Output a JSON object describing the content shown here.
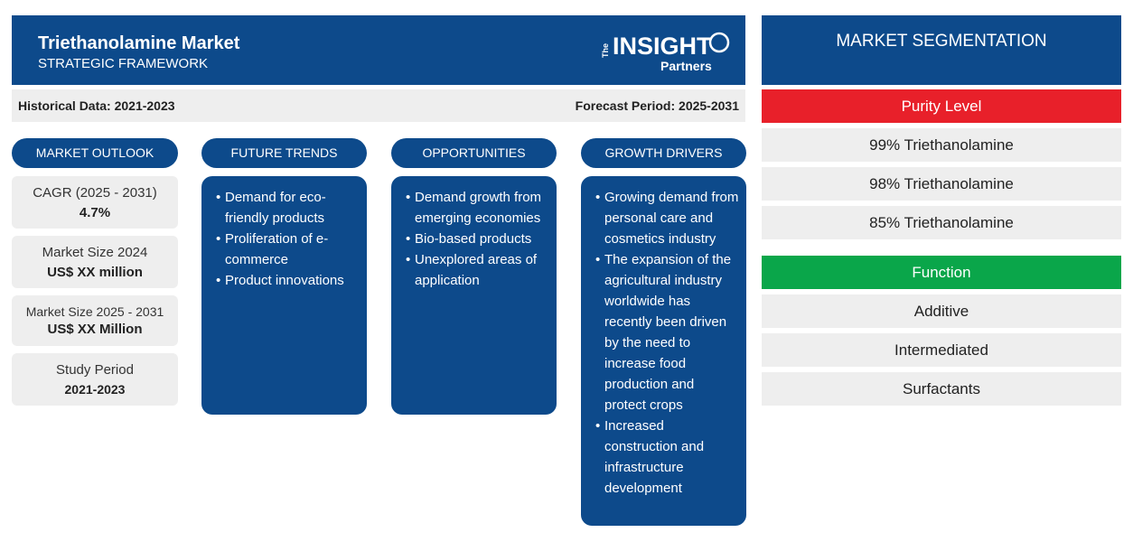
{
  "header": {
    "title": "Triethanolamine Market",
    "subtitle": "STRATEGIC FRAMEWORK"
  },
  "logo": {
    "the": "The",
    "insight": "INSIGHT",
    "partners": "Partners"
  },
  "subbar": {
    "historical": "Historical Data: 2021-2023",
    "forecast": "Forecast Period: 2025-2031"
  },
  "columns": {
    "market_outlook": "MARKET OUTLOOK",
    "future_trends": "FUTURE TRENDS",
    "opportunities": "OPPORTUNITIES",
    "growth_drivers": "GROWTH DRIVERS"
  },
  "outlook": [
    {
      "label": "CAGR (2025 - 2031)",
      "value": "4.7%"
    },
    {
      "label": "Market Size 2024",
      "value": "US$ XX million"
    },
    {
      "label": "Market Size 2025 - 2031",
      "value": "US$ XX Million"
    },
    {
      "label": "Study Period",
      "value": "2021-2023"
    }
  ],
  "future_trends": [
    "Demand for eco-friendly products",
    "Proliferation of e-commerce",
    "Product innovations"
  ],
  "opportunities": [
    "Demand growth from emerging economies",
    "Bio-based products",
    "Unexplored areas of application"
  ],
  "growth_drivers": [
    "Growing demand from personal care and cosmetics industry",
    "The expansion of the agricultural industry worldwide has recently been driven by the need to increase food production and protect crops",
    "Increased construction and infrastructure development"
  ],
  "segmentation": {
    "title": "MARKET SEGMENTATION",
    "categories": [
      {
        "name": "Purity Level",
        "color": "#e8202a",
        "items": [
          "99% Triethanolamine",
          "98% Triethanolamine",
          "85% Triethanolamine"
        ]
      },
      {
        "name": "Function",
        "color": "#0aa64a",
        "items": [
          "Additive",
          "Intermediated",
          "Surfactants"
        ]
      }
    ]
  },
  "colors": {
    "primary": "#0d4a8b",
    "panel": "#eeeeee"
  }
}
